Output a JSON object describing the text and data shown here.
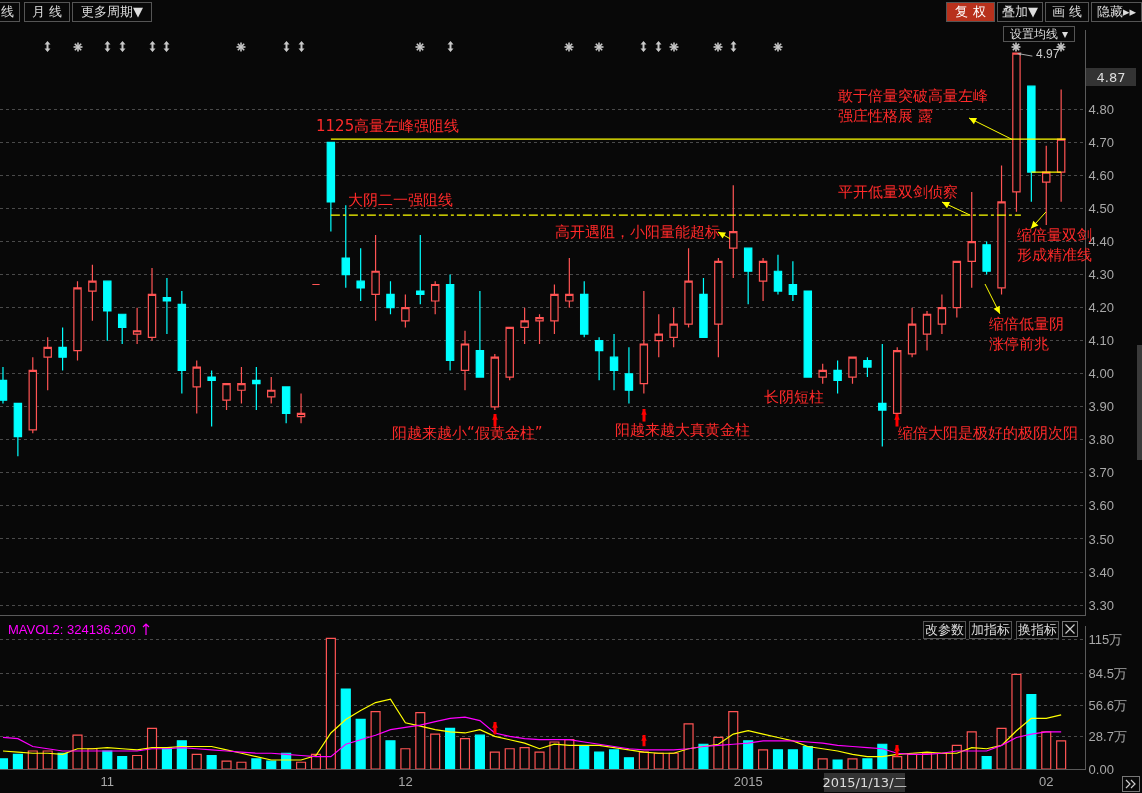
{
  "chart_data": [
    {
      "type": "candlestick",
      "categories": [
        null,
        null,
        null,
        null,
        null,
        null,
        null,
        "11",
        null,
        null,
        null,
        null,
        null,
        null,
        null,
        null,
        null,
        null,
        null,
        null,
        null,
        null,
        null,
        null,
        null,
        null,
        null,
        "12",
        null,
        null,
        null,
        null,
        null,
        null,
        null,
        null,
        null,
        null,
        null,
        null,
        null,
        null,
        null,
        null,
        null,
        null,
        null,
        null,
        null,
        null,
        "2015",
        null,
        null,
        null,
        null,
        null,
        null,
        null,
        null,
        null,
        null,
        null,
        null,
        null,
        null,
        null,
        null,
        null,
        null,
        null,
        "02",
        null
      ],
      "ohlc": [
        [
          3.98,
          4.02,
          3.91,
          3.92
        ],
        [
          3.91,
          3.91,
          3.75,
          3.81
        ],
        [
          3.83,
          4.05,
          3.82,
          4.01
        ],
        [
          4.05,
          4.11,
          3.95,
          4.08
        ],
        [
          4.08,
          4.14,
          4.01,
          4.05
        ],
        [
          4.07,
          4.28,
          4.04,
          4.26
        ],
        [
          4.25,
          4.33,
          4.16,
          4.28
        ],
        [
          4.28,
          4.28,
          4.1,
          4.19
        ],
        [
          4.18,
          4.18,
          4.09,
          4.14
        ],
        [
          4.12,
          4.2,
          4.09,
          4.13
        ],
        [
          4.11,
          4.32,
          4.1,
          4.24
        ],
        [
          4.23,
          4.29,
          4.12,
          4.22
        ],
        [
          4.21,
          4.25,
          3.94,
          4.01
        ],
        [
          3.96,
          4.04,
          3.88,
          4.02
        ],
        [
          3.99,
          4.01,
          3.84,
          3.98
        ],
        [
          3.92,
          3.97,
          3.89,
          3.97
        ],
        [
          3.95,
          4.02,
          3.91,
          3.97
        ],
        [
          3.98,
          4.02,
          3.89,
          3.97
        ],
        [
          3.93,
          3.99,
          3.91,
          3.95
        ],
        [
          3.96,
          3.96,
          3.85,
          3.88
        ],
        [
          3.87,
          3.94,
          3.85,
          3.88
        ],
        [
          4.27,
          4.27,
          4.27,
          4.27
        ],
        [
          4.7,
          4.7,
          4.43,
          4.52
        ],
        [
          4.35,
          4.51,
          4.26,
          4.3
        ],
        [
          4.28,
          4.38,
          4.22,
          4.26
        ],
        [
          4.24,
          4.42,
          4.16,
          4.31
        ],
        [
          4.24,
          4.28,
          4.18,
          4.2
        ],
        [
          4.16,
          4.24,
          4.14,
          4.2
        ],
        [
          4.25,
          4.42,
          4.21,
          4.24
        ],
        [
          4.22,
          4.28,
          4.18,
          4.27
        ],
        [
          4.27,
          4.3,
          4.01,
          4.04
        ],
        [
          4.01,
          4.13,
          3.95,
          4.09
        ],
        [
          4.07,
          4.25,
          3.99,
          3.99
        ],
        [
          3.9,
          4.06,
          3.89,
          4.05
        ],
        [
          3.99,
          4.14,
          3.98,
          4.14
        ],
        [
          4.14,
          4.2,
          4.09,
          4.16
        ],
        [
          4.16,
          4.18,
          4.09,
          4.17
        ],
        [
          4.16,
          4.27,
          4.12,
          4.24
        ],
        [
          4.22,
          4.35,
          4.2,
          4.24
        ],
        [
          4.24,
          4.28,
          4.11,
          4.12
        ],
        [
          4.1,
          4.11,
          3.98,
          4.07
        ],
        [
          4.05,
          4.12,
          3.95,
          4.01
        ],
        [
          4.0,
          4.08,
          3.91,
          3.95
        ],
        [
          3.97,
          4.25,
          3.94,
          4.09
        ],
        [
          4.1,
          4.18,
          4.05,
          4.12
        ],
        [
          4.11,
          4.2,
          4.08,
          4.15
        ],
        [
          4.15,
          4.38,
          4.14,
          4.28
        ],
        [
          4.24,
          4.29,
          4.11,
          4.11
        ],
        [
          4.15,
          4.35,
          4.05,
          4.34
        ],
        [
          4.38,
          4.57,
          4.29,
          4.43
        ],
        [
          4.38,
          4.38,
          4.21,
          4.31
        ],
        [
          4.28,
          4.35,
          4.22,
          4.34
        ],
        [
          4.31,
          4.36,
          4.24,
          4.25
        ],
        [
          4.27,
          4.34,
          4.22,
          4.24
        ],
        [
          4.25,
          4.25,
          3.99,
          3.99
        ],
        [
          3.99,
          4.03,
          3.97,
          4.01
        ],
        [
          4.01,
          4.04,
          3.94,
          3.98
        ],
        [
          3.99,
          4.05,
          3.97,
          4.05
        ],
        [
          4.04,
          4.05,
          3.99,
          4.02
        ],
        [
          3.91,
          4.09,
          3.78,
          3.89
        ],
        [
          3.88,
          4.08,
          3.88,
          4.07
        ],
        [
          4.06,
          4.2,
          4.05,
          4.15
        ],
        [
          4.12,
          4.19,
          4.07,
          4.18
        ],
        [
          4.15,
          4.24,
          4.12,
          4.2
        ],
        [
          4.2,
          4.34,
          4.17,
          4.34
        ],
        [
          4.34,
          4.55,
          4.26,
          4.4
        ],
        [
          4.39,
          4.4,
          4.3,
          4.31
        ],
        [
          4.26,
          4.63,
          4.24,
          4.52
        ],
        [
          4.55,
          4.97,
          4.49,
          4.97
        ],
        [
          4.87,
          4.87,
          4.52,
          4.61
        ],
        [
          4.58,
          4.69,
          4.45,
          4.61
        ],
        [
          4.61,
          4.86,
          4.52,
          4.71
        ]
      ],
      "colors": [
        "#00ffff",
        "#00ffff",
        "#ff5454",
        "#ff5454",
        "#00ffff",
        "#ff5454",
        "#ff5454",
        "#00ffff",
        "#00ffff",
        "#ff5454",
        "#ff5454",
        "#00ffff",
        "#00ffff",
        "#ff5454",
        "#00ffff",
        "#ff5454",
        "#ff5454",
        "#00ffff",
        "#ff5454",
        "#00ffff",
        "#ff5454",
        "#ff5454",
        "#00ffff",
        "#00ffff",
        "#00ffff",
        "#ff5454",
        "#00ffff",
        "#ff5454",
        "#00ffff",
        "#ff5454",
        "#00ffff",
        "#ff5454",
        "#00ffff",
        "#ff5454",
        "#ff5454",
        "#ff5454",
        "#ff5454",
        "#ff5454",
        "#ff5454",
        "#00ffff",
        "#00ffff",
        "#00ffff",
        "#00ffff",
        "#ff5454",
        "#ff5454",
        "#ff5454",
        "#ff5454",
        "#00ffff",
        "#ff5454",
        "#ff5454",
        "#00ffff",
        "#ff5454",
        "#00ffff",
        "#00ffff",
        "#00ffff",
        "#ff5454",
        "#00ffff",
        "#ff5454",
        "#00ffff",
        "#00ffff",
        "#ff5454",
        "#ff5454",
        "#ff5454",
        "#ff5454",
        "#ff5454",
        "#ff5454",
        "#00ffff",
        "#ff5454",
        "#ff5454",
        "#00ffff",
        "#ff5454",
        "#ff5454"
      ],
      "ylim": [
        3.27,
        5.04
      ],
      "yticks": [
        {
          "value": 3.3,
          "label": "3.30"
        },
        {
          "value": 3.4,
          "label": "3.40"
        },
        {
          "value": 3.5,
          "label": "3.50"
        },
        {
          "value": 3.6,
          "label": "3.60"
        },
        {
          "value": 3.7,
          "label": "3.70"
        },
        {
          "value": 3.8,
          "label": "3.80"
        },
        {
          "value": 3.9,
          "label": "3.90"
        },
        {
          "value": 4.0,
          "label": "4.00"
        },
        {
          "value": 4.1,
          "label": "4.10"
        },
        {
          "value": 4.2,
          "label": "4.20"
        },
        {
          "value": 4.3,
          "label": "4.30"
        },
        {
          "value": 4.4,
          "label": "4.40"
        },
        {
          "value": 4.5,
          "label": "4.50"
        },
        {
          "value": 4.6,
          "label": "4.60"
        },
        {
          "value": 4.7,
          "label": "4.70"
        },
        {
          "value": 4.8,
          "label": "4.80"
        }
      ],
      "grid": "y",
      "tick_labels": "y",
      "ref_lines": [
        {
          "axis": "y",
          "value": 4.71,
          "label": "1125高量左峰强阻线",
          "color": "#ffff00",
          "line_style": "solid"
        },
        {
          "axis": "y",
          "value": 4.48,
          "label": "大阴二一强阻线",
          "color": "#ffff00",
          "line_style": "dashed"
        }
      ],
      "series": [
        {
          "type": "line",
          "color": "#ffff00",
          "values": [
            null,
            null,
            null,
            null,
            null,
            null,
            null,
            null,
            null,
            null,
            null,
            null,
            null,
            null,
            null,
            null,
            null,
            null,
            null,
            null,
            null,
            null,
            null,
            null,
            null,
            null,
            null,
            null,
            null,
            null,
            null,
            null,
            null,
            null,
            null,
            null,
            null,
            null,
            null,
            null,
            null,
            null,
            null,
            null,
            null,
            null,
            null,
            null,
            null,
            null,
            null,
            null,
            null,
            null,
            null,
            null,
            null,
            null,
            null,
            null,
            null,
            null,
            null,
            null,
            null,
            null,
            null,
            null,
            null,
            4.61,
            4.61,
            4.61
          ]
        }
      ],
      "annotations": [
        "线",
        "月 线",
        "更多周期▼",
        "复 权",
        "叠加▼",
        "画 线",
        "隐藏▸▸",
        "设置均线 ▾",
        "4.87",
        "高开遇阻，小阳量能超标",
        "阳越来越小“假黄金柱”",
        "阳越来越大真黄金柱",
        "长阴短柱",
        "缩倍大阳是极好的极阴次阳",
        {
          "text": "平开低量双剑侦察",
          "y": 4.48
        },
        {
          "text": "敢于倍量突破高量左峰强庄性格展 露",
          "y": 4.71
        },
        "缩倍量双剑形成精准线",
        "缩倍低量阴涨停前兆",
        "4.97"
      ]
    },
    {
      "type": "bar",
      "categories": [
        null,
        null,
        null,
        null,
        null,
        null,
        null,
        "11",
        null,
        null,
        null,
        null,
        null,
        null,
        null,
        null,
        null,
        null,
        null,
        null,
        null,
        null,
        null,
        null,
        null,
        null,
        null,
        "12",
        null,
        null,
        null,
        null,
        null,
        null,
        null,
        null,
        null,
        null,
        null,
        null,
        null,
        null,
        null,
        null,
        null,
        null,
        null,
        null,
        null,
        null,
        "2015",
        null,
        null,
        null,
        null,
        null,
        null,
        null,
        null,
        null,
        null,
        null,
        null,
        null,
        null,
        null,
        null,
        null,
        null,
        null,
        "02",
        null
      ],
      "series": [
        {
          "type": "bar",
          "values": [
            9,
            13,
            16,
            16,
            14,
            30,
            18,
            16,
            11,
            12,
            36,
            19,
            25,
            13,
            12,
            7,
            6,
            9,
            7,
            14,
            6,
            13,
            116,
            71,
            44,
            51,
            25,
            18,
            50,
            31,
            36,
            27,
            30,
            15,
            18,
            19,
            15,
            24,
            26,
            20,
            15,
            17,
            10,
            15,
            14,
            14,
            40,
            22,
            28,
            51,
            25,
            17,
            17,
            17,
            20,
            9,
            8,
            9,
            9,
            22,
            11,
            13,
            14,
            14,
            21,
            33,
            11,
            36,
            84,
            66,
            33,
            25
          ],
          "colors": [
            "#00ffff",
            "#00ffff",
            "#ff5454",
            "#ff5454",
            "#00ffff",
            "#ff5454",
            "#ff5454",
            "#00ffff",
            "#00ffff",
            "#ff5454",
            "#ff5454",
            "#00ffff",
            "#00ffff",
            "#ff5454",
            "#00ffff",
            "#ff5454",
            "#ff5454",
            "#00ffff",
            "#00ffff",
            "#00ffff",
            "#ff5454",
            "#ff5454",
            "#ff5454",
            "#00ffff",
            "#00ffff",
            "#ff5454",
            "#00ffff",
            "#ff5454",
            "#ff5454",
            "#ff5454",
            "#00ffff",
            "#ff5454",
            "#00ffff",
            "#ff5454",
            "#ff5454",
            "#ff5454",
            "#ff5454",
            "#ff5454",
            "#ff5454",
            "#00ffff",
            "#00ffff",
            "#00ffff",
            "#00ffff",
            "#ff5454",
            "#ff5454",
            "#ff5454",
            "#ff5454",
            "#00ffff",
            "#ff5454",
            "#ff5454",
            "#00ffff",
            "#ff5454",
            "#00ffff",
            "#00ffff",
            "#00ffff",
            "#ff5454",
            "#00ffff",
            "#ff5454",
            "#00ffff",
            "#00ffff",
            "#ff5454",
            "#ff5454",
            "#ff5454",
            "#ff5454",
            "#ff5454",
            "#ff5454",
            "#00ffff",
            "#ff5454",
            "#ff5454",
            "#00ffff",
            "#ff5454",
            "#ff5454"
          ]
        },
        {
          "type": "line",
          "color": "#ffff00",
          "values": [
            16,
            15,
            14,
            14,
            13,
            18,
            18,
            19,
            18,
            17,
            19,
            19,
            20,
            20,
            20,
            17,
            14,
            11,
            8,
            8,
            8,
            12,
            32,
            44,
            52,
            59,
            62,
            41,
            38,
            35,
            33,
            32,
            35,
            29,
            26,
            23,
            18,
            22,
            21,
            21,
            21,
            19,
            17,
            15,
            14,
            14,
            18,
            20,
            22,
            31,
            34,
            31,
            28,
            25,
            20,
            18,
            16,
            13,
            11,
            11,
            13,
            14,
            15,
            14,
            14,
            19,
            18,
            21,
            34,
            45,
            45,
            48
          ]
        },
        {
          "type": "line",
          "name": "MAVOL2: 324136.200",
          "color": "#ff00ff",
          "values": [
            28,
            27,
            20,
            18,
            16,
            16,
            16,
            16,
            16,
            16,
            18,
            18,
            19,
            18,
            17,
            16,
            15,
            14,
            14,
            13,
            12,
            11,
            11,
            22,
            26,
            30,
            35,
            37,
            39,
            42,
            45,
            46,
            43,
            32,
            29,
            27,
            26,
            26,
            26,
            24,
            22,
            20,
            18,
            17,
            17,
            17,
            18,
            20,
            21,
            22,
            23,
            25,
            25,
            25,
            24,
            23,
            21,
            20,
            19,
            18,
            14,
            13,
            13,
            14,
            16,
            16,
            16,
            21,
            28,
            31,
            33,
            33
          ]
        }
      ],
      "ylim": [
        0,
        127
      ],
      "yticks": [
        {
          "value": 0,
          "label": "0.00"
        },
        {
          "value": 28.7,
          "label": "28.7万"
        },
        {
          "value": 56.6,
          "label": "56.6万"
        },
        {
          "value": 84.5,
          "label": "84.5万"
        },
        {
          "value": 115,
          "label": "115万"
        }
      ],
      "grid": "y",
      "annotations": [
        "改参数",
        "加指标",
        "换指标",
        "2015/1/13/二"
      ]
    }
  ]
}
